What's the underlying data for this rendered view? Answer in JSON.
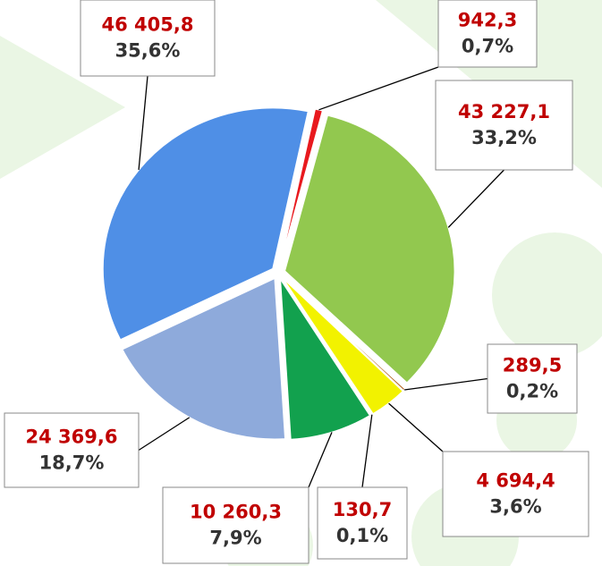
{
  "chart_data": {
    "type": "pie",
    "categories": [
      null,
      null,
      null,
      null,
      null,
      null,
      null,
      null
    ],
    "values": [
      942.3,
      43227.1,
      289.5,
      4694.4,
      130.7,
      10260.3,
      24369.6,
      46405.8
    ],
    "value_labels": [
      "942,3",
      "43 227,1",
      "289,5",
      "4 694,4",
      "130,7",
      "10 260,3",
      "24 369,6",
      "46 405,8"
    ],
    "percentages": [
      0.7,
      33.2,
      0.2,
      3.6,
      0.1,
      7.9,
      18.7,
      35.6
    ],
    "percentage_labels": [
      "0,7%",
      "33,2%",
      "0,2%",
      "3,6%",
      "0,1%",
      "7,9%",
      "18,7%",
      "35,6%"
    ],
    "colors": [
      "#e8191e",
      "#92c84f",
      "#b0601a",
      "#f2f200",
      "#6b6b2a",
      "#12a14e",
      "#8eaadb",
      "#4f8fe6"
    ]
  }
}
